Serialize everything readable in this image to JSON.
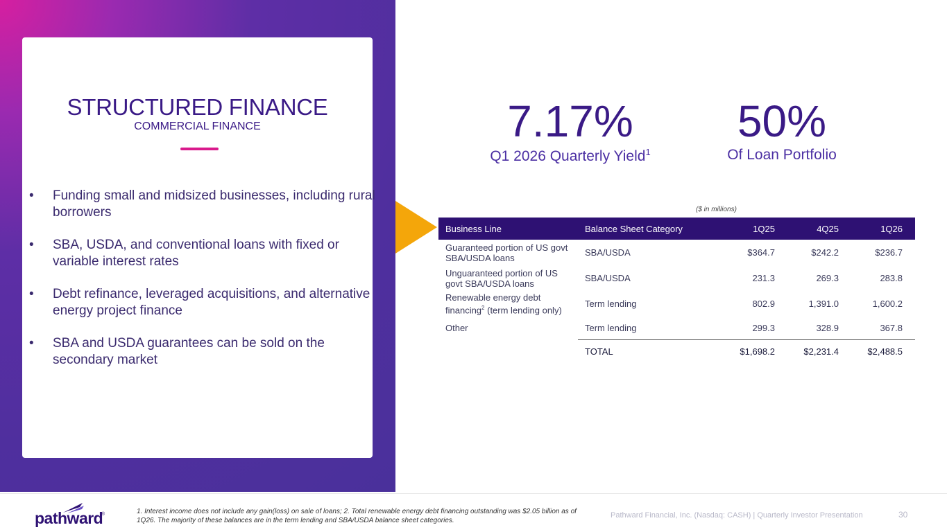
{
  "card": {
    "title": "STRUCTURED FINANCE",
    "subtitle": "COMMERCIAL FINANCE",
    "bullets": [
      "Funding small and midsized businesses, including rural borrowers",
      "SBA, USDA, and conventional loans with fixed or variable interest rates",
      "Debt refinance, leveraged acquisitions, and alternative energy project finance",
      "SBA and USDA guarantees can be sold on the secondary market"
    ],
    "bullet_marker": "•"
  },
  "stats": [
    {
      "value": "7.17%",
      "label": "Q1 2026 Quarterly Yield",
      "footnote_ref": "1"
    },
    {
      "value": "50%",
      "label": "Of Loan Portfolio"
    }
  ],
  "table": {
    "units": "($ in millions)",
    "headers": [
      "Business Line",
      "Balance Sheet Category",
      "1Q25",
      "4Q25",
      "1Q26"
    ],
    "rows": [
      {
        "business_line": "Guaranteed portion of US govt SBA/USDA loans",
        "category": "SBA/USDA",
        "q1_25": "$364.7",
        "q4_25": "$242.2",
        "q1_26": "$236.7"
      },
      {
        "business_line": "Unguaranteed portion of US govt SBA/USDA loans",
        "category": "SBA/USDA",
        "q1_25": "231.3",
        "q4_25": "269.3",
        "q1_26": "283.8"
      },
      {
        "business_line_pre": "Renewable energy debt financing",
        "business_line_sup": "2",
        "business_line_post": " (term lending only)",
        "category": "Term lending",
        "q1_25": "802.9",
        "q4_25": "1,391.0",
        "q1_26": "1,600.2"
      },
      {
        "business_line": "Other",
        "category": "Term lending",
        "q1_25": "299.3",
        "q4_25": "328.9",
        "q1_26": "367.8"
      }
    ],
    "total": {
      "label": "TOTAL",
      "q1_25": "$1,698.2",
      "q4_25": "$2,231.4",
      "q1_26": "$2,488.5"
    }
  },
  "footer": {
    "logo_text": "pathward",
    "logo_reg": "®",
    "footnote": "1. Interest income does not include any gain(loss) on sale of loans; 2. Total renewable energy debt financing outstanding was $2.05 billion as of 1Q26. The majority of these balances are in the term lending and SBA/USDA balance sheet categories.",
    "info": "Pathward Financial, Inc. (Nasdaq: CASH) | Quarterly Investor Presentation",
    "page_number": "30"
  },
  "colors": {
    "brand_purple": "#3a1a86",
    "table_header": "#2e1173",
    "accent_magenta": "#d91a8c",
    "arrow_orange": "#f4a60a"
  }
}
